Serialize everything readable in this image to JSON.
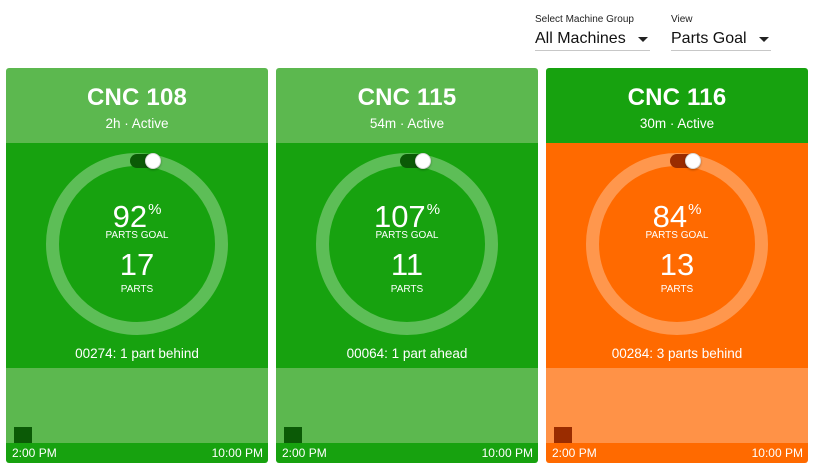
{
  "filters": {
    "machine_group": {
      "label": "Select Machine Group",
      "value": "All Machines"
    },
    "view": {
      "label": "View",
      "value": "Parts Goal"
    }
  },
  "cards": [
    {
      "title": "CNC 108",
      "status": "2h · Active",
      "percent": "92",
      "percent_sign": "%",
      "percent_label": "PARTS GOAL",
      "parts": "17",
      "parts_label": "PARTS",
      "message": "00274: 1 part behind",
      "time_start": "2:00 PM",
      "time_end": "10:00 PM",
      "progress_fraction": 0.92,
      "colors": {
        "header": "#5cb84f",
        "body": "#17a20f",
        "chart": "#5cb84f",
        "bar": "#0b5a06",
        "toggle": "#0b5a06"
      }
    },
    {
      "title": "CNC 115",
      "status": "54m · Active",
      "percent": "107",
      "percent_sign": "%",
      "percent_label": "PARTS GOAL",
      "parts": "11",
      "parts_label": "PARTS",
      "message": "00064: 1 part ahead",
      "time_start": "2:00 PM",
      "time_end": "10:00 PM",
      "progress_fraction": 1.07,
      "colors": {
        "header": "#5cb84f",
        "body": "#17a20f",
        "chart": "#5cb84f",
        "bar": "#0b5a06",
        "toggle": "#0b5a06"
      }
    },
    {
      "title": "CNC 116",
      "status": "30m · Active",
      "percent": "84",
      "percent_sign": "%",
      "percent_label": "PARTS GOAL",
      "parts": "13",
      "parts_label": "PARTS",
      "message": "00284: 3 parts behind",
      "time_start": "2:00 PM",
      "time_end": "10:00 PM",
      "progress_fraction": 0.84,
      "colors": {
        "header": "#17a20f",
        "body": "#ff6a00",
        "chart": "#ff9247",
        "bar": "#9a2c00",
        "toggle": "#9a2c00"
      }
    }
  ]
}
